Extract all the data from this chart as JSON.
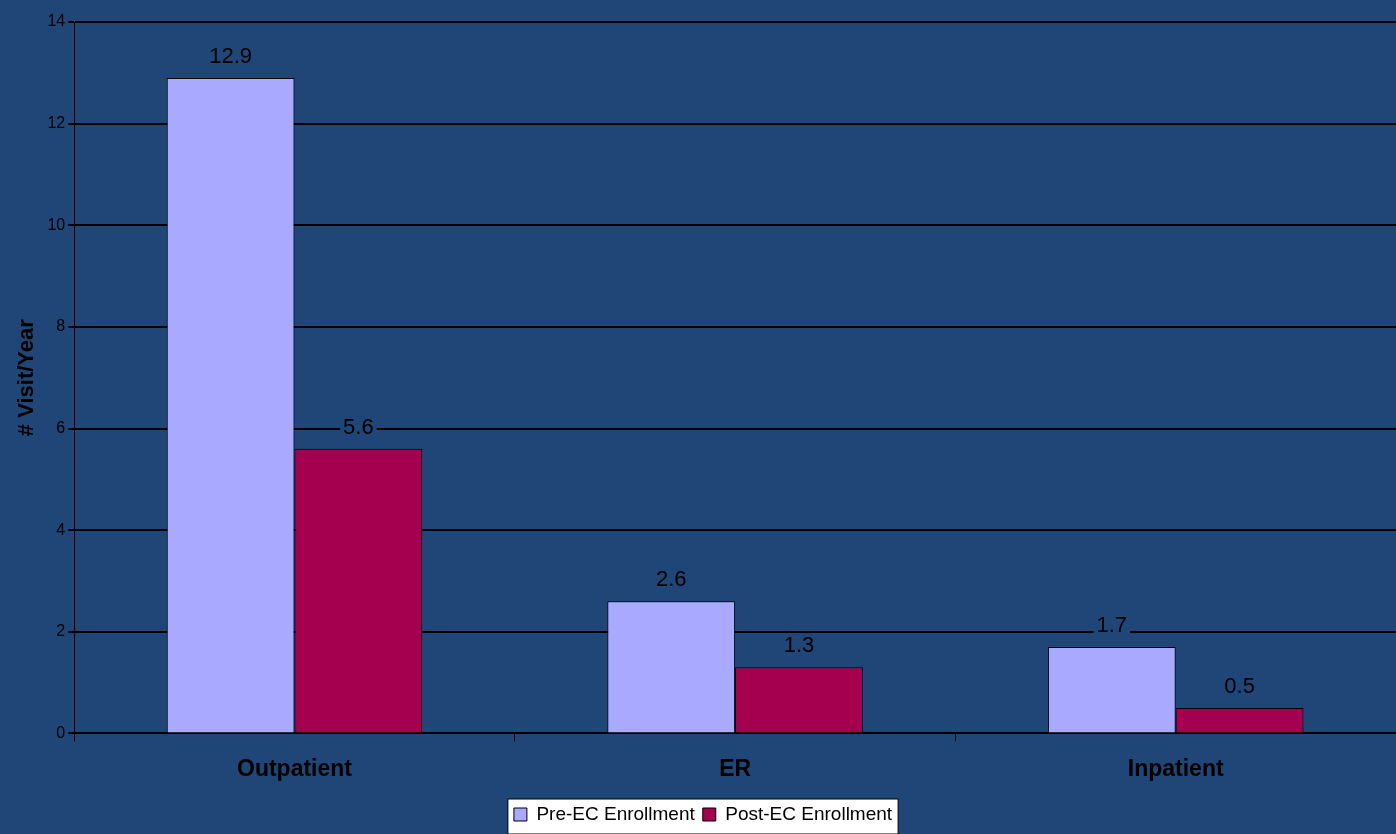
{
  "chart_data": {
    "type": "bar",
    "ylabel": "# Visit/Year",
    "categories": [
      "Outpatient",
      "ER",
      "Inpatient"
    ],
    "series": [
      {
        "name": "Pre-EC Enrollment",
        "color": "#a9a9ff",
        "values": [
          12.9,
          2.6,
          1.7
        ]
      },
      {
        "name": "Post-EC Enrollment",
        "color": "#a50050",
        "values": [
          5.6,
          1.3,
          0.5
        ]
      }
    ],
    "ylim": [
      0,
      14
    ],
    "yticks": [
      0,
      2,
      4,
      6,
      8,
      10,
      12,
      14
    ],
    "grid": "y",
    "legend": "bottom",
    "data_labels": true
  }
}
